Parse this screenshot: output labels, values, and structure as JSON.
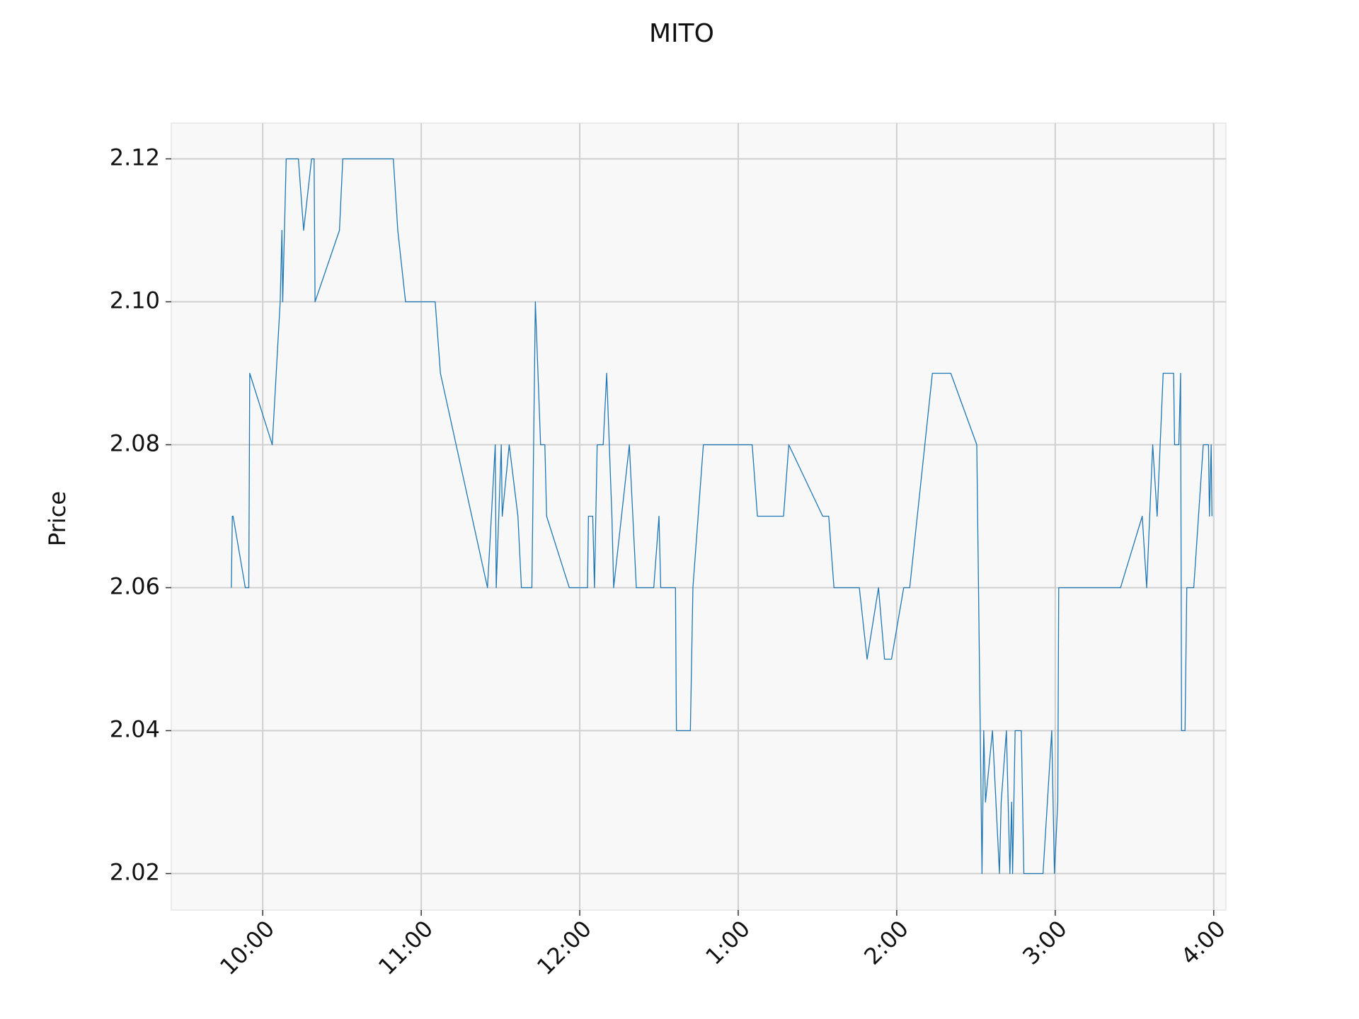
{
  "chart_data": {
    "type": "line",
    "title": "MITO",
    "y_label": "Price",
    "color": "#1f77b4",
    "grid": true,
    "x": [
      9.802,
      9.808,
      9.813,
      9.89,
      9.912,
      9.918,
      10.06,
      10.11,
      10.121,
      10.126,
      10.148,
      10.225,
      10.258,
      10.308,
      10.324,
      10.33,
      10.484,
      10.505,
      10.824,
      10.852,
      10.901,
      11.088,
      11.121,
      11.418,
      11.467,
      11.473,
      11.505,
      11.511,
      11.555,
      11.61,
      11.632,
      11.698,
      11.72,
      11.753,
      11.78,
      11.791,
      11.934,
      12.049,
      12.055,
      12.082,
      12.093,
      12.11,
      12.148,
      12.17,
      12.203,
      12.214,
      12.313,
      12.357,
      12.467,
      12.5,
      12.511,
      12.604,
      12.61,
      12.698,
      12.714,
      12.78,
      13.088,
      13.121,
      13.286,
      13.319,
      13.533,
      13.571,
      13.604,
      13.764,
      13.813,
      13.885,
      13.923,
      13.967,
      14.044,
      14.082,
      14.225,
      14.341,
      14.505,
      14.516,
      14.538,
      14.549,
      14.56,
      14.604,
      14.648,
      14.659,
      14.692,
      14.714,
      14.725,
      14.731,
      14.747,
      14.786,
      14.802,
      14.923,
      14.978,
      14.995,
      15.016,
      15.022,
      15.412,
      15.549,
      15.577,
      15.615,
      15.643,
      15.681,
      15.747,
      15.753,
      15.78,
      15.791,
      15.797,
      15.819,
      15.83,
      15.874,
      15.934,
      15.967,
      15.973,
      15.984,
      15.989
    ],
    "values": [
      2.06,
      2.07,
      2.07,
      2.06,
      2.06,
      2.09,
      2.08,
      2.1,
      2.11,
      2.1,
      2.12,
      2.12,
      2.11,
      2.12,
      2.12,
      2.1,
      2.11,
      2.12,
      2.12,
      2.11,
      2.1,
      2.1,
      2.09,
      2.06,
      2.08,
      2.06,
      2.08,
      2.07,
      2.08,
      2.07,
      2.06,
      2.06,
      2.1,
      2.08,
      2.08,
      2.07,
      2.06,
      2.06,
      2.07,
      2.07,
      2.06,
      2.08,
      2.08,
      2.09,
      2.07,
      2.06,
      2.08,
      2.06,
      2.06,
      2.07,
      2.06,
      2.06,
      2.04,
      2.04,
      2.06,
      2.08,
      2.08,
      2.07,
      2.07,
      2.08,
      2.07,
      2.07,
      2.06,
      2.06,
      2.05,
      2.06,
      2.05,
      2.05,
      2.06,
      2.06,
      2.09,
      2.09,
      2.08,
      2.06,
      2.02,
      2.04,
      2.03,
      2.04,
      2.02,
      2.03,
      2.04,
      2.02,
      2.03,
      2.02,
      2.04,
      2.04,
      2.02,
      2.02,
      2.04,
      2.02,
      2.03,
      2.06,
      2.06,
      2.07,
      2.06,
      2.08,
      2.07,
      2.09,
      2.09,
      2.08,
      2.08,
      2.09,
      2.04,
      2.04,
      2.06,
      2.06,
      2.08,
      2.08,
      2.07,
      2.08,
      2.07
    ],
    "xlim": [
      9.423,
      16.077
    ],
    "ylim": [
      2.0149,
      2.125
    ],
    "xticks": [
      {
        "value": 10,
        "label": "10:00"
      },
      {
        "value": 11,
        "label": "11:00"
      },
      {
        "value": 12,
        "label": "12:00"
      },
      {
        "value": 13,
        "label": "1:00"
      },
      {
        "value": 14,
        "label": "2:00"
      },
      {
        "value": 15,
        "label": "3:00"
      },
      {
        "value": 16,
        "label": "4:00"
      }
    ],
    "yticks": [
      {
        "value": 2.02,
        "label": "2.02"
      },
      {
        "value": 2.04,
        "label": "2.04"
      },
      {
        "value": 2.06,
        "label": "2.06"
      },
      {
        "value": 2.08,
        "label": "2.08"
      },
      {
        "value": 2.1,
        "label": "2.10"
      },
      {
        "value": 2.12,
        "label": "2.12"
      }
    ]
  }
}
